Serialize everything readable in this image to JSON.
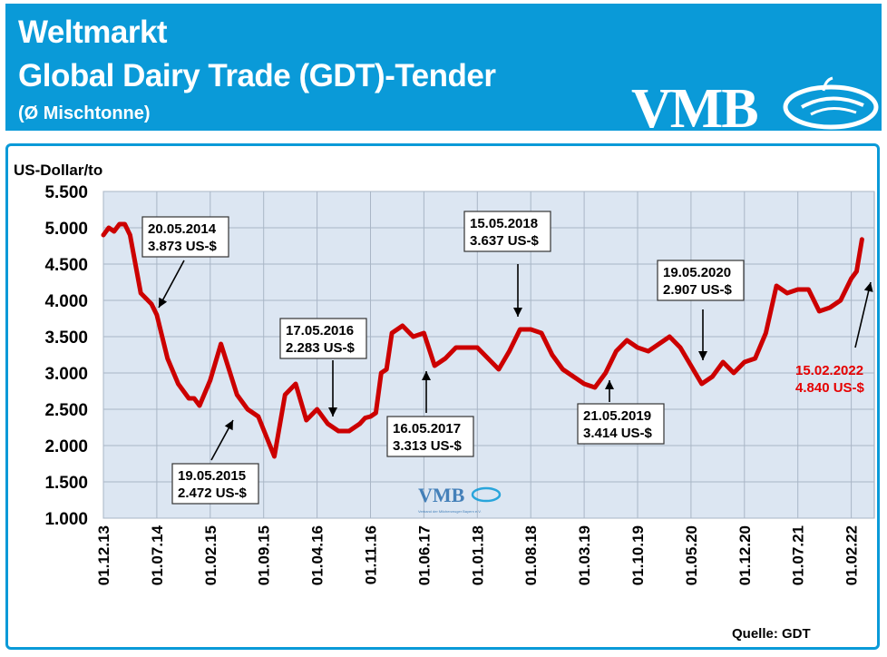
{
  "header": {
    "title_line1": "Weltmarkt",
    "title_line2": "Global Dairy Trade (GDT)-Tender",
    "subtitle": "(Ø Mischtonne)",
    "logo_text": "VMB"
  },
  "colors": {
    "header_bg": "#0a9ad8",
    "line": "#cc0000",
    "plot_bg": "#dce6f2",
    "highlight": "#e60000"
  },
  "watermark": {
    "text": "VMB",
    "subtext": "Verband der Milcherzeuger Bayern e.V."
  },
  "source": "Quelle: GDT",
  "chart_data": {
    "type": "line",
    "ylabel": "US-Dollar/to",
    "ylim": [
      1000,
      5500
    ],
    "yticks": [
      "1.000",
      "1.500",
      "2.000",
      "2.500",
      "3.000",
      "3.500",
      "4.000",
      "4.500",
      "5.000",
      "5.500"
    ],
    "xticks": [
      "01.12.13",
      "01.07.14",
      "01.02.15",
      "01.09.15",
      "01.04.16",
      "01.11.16",
      "01.06.17",
      "01.01.18",
      "01.08.18",
      "01.03.19",
      "01.10.19",
      "01.05.20",
      "01.12.20",
      "01.07.21",
      "01.02.22"
    ],
    "grid": true,
    "series": [
      {
        "x": [
          0.0,
          0.1,
          0.2,
          0.3,
          0.4,
          0.5,
          0.6,
          0.7,
          0.9,
          1.0,
          1.2,
          1.4,
          1.6,
          1.7,
          1.8,
          2.0,
          2.2,
          2.5,
          2.7,
          2.9,
          3.2,
          3.4,
          3.6,
          3.8,
          4.0,
          4.2,
          4.4,
          4.6,
          4.8,
          4.9,
          5.0,
          5.1,
          5.2,
          5.3,
          5.4,
          5.6,
          5.8,
          6.0,
          6.2,
          6.4,
          6.6,
          6.8,
          7.0,
          7.2,
          7.4,
          7.6,
          7.8,
          8.0,
          8.2,
          8.4,
          8.6,
          8.8,
          9.0,
          9.2,
          9.4,
          9.6,
          9.8,
          10.0,
          10.2,
          10.4,
          10.6,
          10.8,
          11.0,
          11.2,
          11.4,
          11.6,
          11.8,
          12.0,
          12.2,
          12.4,
          12.6,
          12.8,
          13.0,
          13.2,
          13.4,
          13.6,
          13.8,
          14.0,
          14.1,
          14.2
        ],
        "y": [
          4900,
          5000,
          4950,
          5050,
          5050,
          4900,
          4500,
          4100,
          3950,
          3800,
          3200,
          2850,
          2650,
          2650,
          2550,
          2900,
          3400,
          2700,
          2500,
          2400,
          1850,
          2700,
          2850,
          2350,
          2500,
          2300,
          2200,
          2200,
          2300,
          2380,
          2400,
          2450,
          3000,
          3050,
          3550,
          3650,
          3500,
          3550,
          3100,
          3200,
          3350,
          3350,
          3350,
          3200,
          3050,
          3300,
          3600,
          3600,
          3550,
          3250,
          3050,
          2950,
          2850,
          2800,
          3000,
          3300,
          3450,
          3350,
          3300,
          3400,
          3500,
          3350,
          3100,
          2850,
          2950,
          3150,
          3000,
          3150,
          3200,
          3550,
          4200,
          4100,
          4150,
          4150,
          3850,
          3900,
          4000,
          4300,
          4400,
          4840
        ]
      }
    ],
    "annotations": [
      {
        "date": "20.05.2014",
        "value": "3.873 US-$"
      },
      {
        "date": "19.05.2015",
        "value": "2.472 US-$"
      },
      {
        "date": "17.05.2016",
        "value": "2.283 US-$"
      },
      {
        "date": "16.05.2017",
        "value": "3.313 US-$"
      },
      {
        "date": "15.05.2018",
        "value": "3.637 US-$"
      },
      {
        "date": "21.05.2019",
        "value": "3.414 US-$"
      },
      {
        "date": "19.05.2020",
        "value": "2.907 US-$"
      },
      {
        "date": "15.02.2022",
        "value": "4.840 US-$",
        "highlight": true
      }
    ]
  }
}
